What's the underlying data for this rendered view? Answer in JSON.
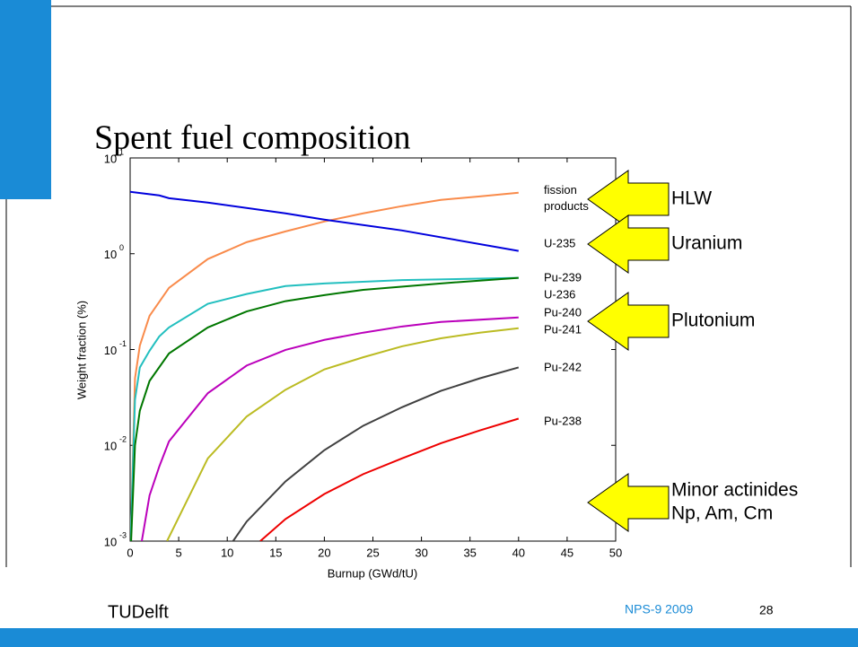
{
  "slide": {
    "title": "Spent fuel composition",
    "footer": {
      "logo": "TUDelft",
      "event": "NPS-9 2009",
      "page": "28"
    }
  },
  "chart_data": {
    "type": "line",
    "xlabel": "Burnup (GWd/tU)",
    "ylabel": "Weight fraction (%)",
    "log_y": true,
    "xlim": [
      0,
      50
    ],
    "xticks": [
      0,
      5,
      10,
      15,
      20,
      25,
      30,
      35,
      40,
      45,
      50
    ],
    "ylim": [
      0.001,
      10
    ],
    "yticks": [
      {
        "value": 0.001,
        "label": "10",
        "exponent": "-3"
      },
      {
        "value": 0.01,
        "label": "10",
        "exponent": "-2"
      },
      {
        "value": 0.1,
        "label": "10",
        "exponent": "-1"
      },
      {
        "value": 1,
        "label": "10",
        "exponent": "0"
      },
      {
        "value": 10,
        "label": "10",
        "exponent": "1"
      }
    ],
    "series": [
      {
        "name": "fission products",
        "color": "#f98b4b",
        "x": [
          0.05,
          0.5,
          1,
          2,
          4,
          8,
          12,
          16,
          20,
          24,
          28,
          32,
          36,
          40
        ],
        "values": [
          0.001,
          0.05,
          0.11,
          0.225,
          0.44,
          0.88,
          1.32,
          1.71,
          2.17,
          2.64,
          3.14,
          3.65,
          3.97,
          4.33
        ]
      },
      {
        "name": "U-235",
        "color": "#0000dd",
        "x": [
          0,
          3,
          4,
          8,
          16,
          20,
          28,
          40
        ],
        "values": [
          4.43,
          4.06,
          3.8,
          3.42,
          2.64,
          2.27,
          1.75,
          1.07
        ]
      },
      {
        "name": "Pu-239",
        "color": "#22bfbf",
        "x": [
          0.05,
          0.5,
          1,
          2,
          3,
          4,
          8,
          12,
          16,
          20,
          28,
          40
        ],
        "values": [
          0.001,
          0.03,
          0.065,
          0.097,
          0.137,
          0.17,
          0.3,
          0.38,
          0.46,
          0.49,
          0.53,
          0.56
        ]
      },
      {
        "name": "U-236",
        "color": "#007700",
        "x": [
          0.1,
          0.5,
          1,
          2,
          4,
          8,
          12,
          16,
          20,
          24,
          32,
          40
        ],
        "values": [
          0.001,
          0.01,
          0.023,
          0.047,
          0.091,
          0.17,
          0.25,
          0.32,
          0.37,
          0.42,
          0.49,
          0.56
        ]
      },
      {
        "name": "Pu-240",
        "color": "#bb00bb",
        "x": [
          1.2,
          2,
          3,
          4,
          8,
          12,
          16,
          20,
          24,
          28,
          32,
          40
        ],
        "values": [
          0.001,
          0.003,
          0.006,
          0.011,
          0.035,
          0.068,
          0.099,
          0.126,
          0.15,
          0.174,
          0.194,
          0.216
        ]
      },
      {
        "name": "Pu-241",
        "color": "#bbbb22",
        "x": [
          3.8,
          8,
          12,
          16,
          20,
          24,
          28,
          32,
          36,
          40
        ],
        "values": [
          0.001,
          0.0073,
          0.02,
          0.038,
          0.062,
          0.083,
          0.108,
          0.131,
          0.15,
          0.167
        ]
      },
      {
        "name": "Pu-242",
        "color": "#404040",
        "x": [
          10.6,
          12,
          16,
          20,
          24,
          28,
          32,
          36,
          40
        ],
        "values": [
          0.001,
          0.0016,
          0.0042,
          0.0089,
          0.016,
          0.025,
          0.037,
          0.05,
          0.065
        ]
      },
      {
        "name": "Pu-238",
        "color": "#ee0000",
        "x": [
          13.4,
          16,
          20,
          24,
          28,
          32,
          36,
          40
        ],
        "values": [
          0.001,
          0.0017,
          0.0031,
          0.005,
          0.0073,
          0.0105,
          0.0143,
          0.019
        ]
      }
    ],
    "annotations": [
      {
        "lines": [
          "HLW"
        ],
        "color": "#ffff00"
      },
      {
        "lines": [
          "Uranium"
        ],
        "color": "#ffff00"
      },
      {
        "lines": [
          "Plutonium"
        ],
        "color": "#ffff00"
      },
      {
        "lines": [
          "Minor actinides",
          "Np, Am, Cm"
        ],
        "color": "#ffff00"
      }
    ]
  }
}
